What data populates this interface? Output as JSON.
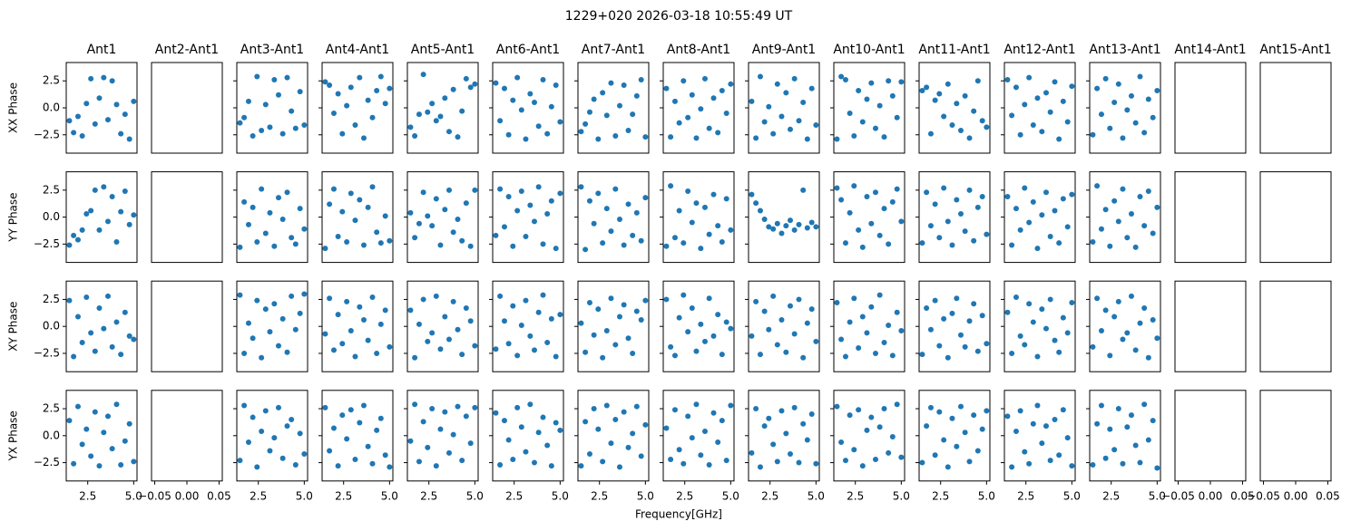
{
  "chart_data": {
    "type": "scatter",
    "title": "1229+020 2026-03-18 10:55:49 UT",
    "xlabel": "Frequency[GHz]",
    "color": "#1f77b4",
    "x": [
      1.5,
      1.73,
      1.97,
      2.2,
      2.43,
      2.67,
      2.9,
      3.13,
      3.37,
      3.6,
      3.83,
      4.07,
      4.3,
      4.53,
      4.77,
      5.0
    ],
    "xlim": [
      1.33,
      5.18
    ],
    "xticks": [
      2.5,
      {
        "value": 5,
        "label": "5.0"
      }
    ],
    "ylim": [
      -4.2,
      4.2
    ],
    "yticks": [
      {
        "value": -2.5,
        "label": "−2.5"
      },
      {
        "value": 0,
        "label": "0.0"
      },
      2.5
    ],
    "empty_xlim": [
      -0.055,
      0.055
    ],
    "empty_xticks": [
      {
        "value": -0.05,
        "label": "−0.05"
      },
      {
        "value": 0,
        "label": "0.00"
      },
      0.05
    ],
    "columns": [
      "Ant1",
      "Ant2-Ant1",
      "Ant3-Ant1",
      "Ant4-Ant1",
      "Ant5-Ant1",
      "Ant6-Ant1",
      "Ant7-Ant1",
      "Ant8-Ant1",
      "Ant9-Ant1",
      "Ant10-Ant1",
      "Ant11-Ant1",
      "Ant12-Ant1",
      "Ant13-Ant1",
      "Ant14-Ant1",
      "Ant15-Ant1"
    ],
    "rows": [
      {
        "ylabel": "XX Phase",
        "series": [
          [
            -1.2,
            -2.3,
            -0.8,
            -2.6,
            0.4,
            2.7,
            -1.5,
            0.9,
            2.8,
            -1.1,
            2.5,
            0.3,
            -2.4,
            -0.6,
            -2.9,
            0.6
          ],
          [],
          [
            -1.4,
            -0.9,
            0.6,
            -2.6,
            2.9,
            -2.1,
            0.3,
            -1.8,
            2.6,
            1.2,
            -2.4,
            2.8,
            -0.3,
            -1.9,
            1.5,
            -1.6
          ],
          [
            2.4,
            2.1,
            -0.5,
            1.3,
            -2.4,
            0.2,
            1.9,
            -1.6,
            2.8,
            -2.8,
            0.7,
            -0.9,
            1.6,
            2.9,
            0.4,
            1.8
          ],
          [
            -1.8,
            -2.6,
            -0.6,
            3.1,
            -0.4,
            0.4,
            -1.2,
            -0.8,
            0.9,
            -2.2,
            1.7,
            -2.7,
            -0.3,
            2.7,
            1.9,
            2.2
          ],
          [
            2.3,
            -1.2,
            1.8,
            -2.5,
            0.7,
            2.8,
            -0.2,
            -2.9,
            1.3,
            0.5,
            -1.7,
            2.6,
            -2.4,
            0.1,
            2.1,
            -1.3
          ],
          [
            -2.2,
            -1.5,
            -0.4,
            0.8,
            -2.9,
            1.4,
            -0.7,
            2.3,
            -2.6,
            0.2,
            2.1,
            -2.1,
            -0.6,
            1.1,
            2.6,
            -2.7
          ],
          [
            1.8,
            -2.7,
            0.6,
            -1.4,
            2.5,
            -0.9,
            1.2,
            -2.8,
            -0.1,
            2.7,
            -1.9,
            0.9,
            -2.3,
            1.6,
            -0.5,
            2.2
          ],
          [
            0.6,
            -2.8,
            2.9,
            -1.3,
            0.1,
            -2.4,
            2.2,
            -0.8,
            1.4,
            -2.0,
            2.7,
            -1.2,
            0.5,
            -2.9,
            1.8,
            -1.6
          ],
          [
            -2.9,
            2.9,
            2.6,
            -0.5,
            -2.6,
            1.6,
            -1.3,
            0.8,
            2.3,
            -1.9,
            0.2,
            -2.7,
            2.5,
            1.1,
            -0.9,
            2.4
          ],
          [
            1.6,
            1.9,
            -2.4,
            0.7,
            1.3,
            -0.8,
            2.2,
            -1.6,
            0.4,
            -2.1,
            1.1,
            -2.8,
            -0.3,
            2.5,
            -1.2,
            -1.8
          ],
          [
            2.6,
            -0.7,
            1.9,
            -2.5,
            0.3,
            2.8,
            -1.6,
            0.9,
            -2.2,
            1.4,
            -0.4,
            2.4,
            -2.9,
            0.6,
            -1.3,
            2.0
          ],
          [
            -2.5,
            1.8,
            -0.6,
            2.7,
            -1.9,
            0.5,
            2.2,
            -2.8,
            -0.2,
            1.1,
            -1.4,
            2.9,
            -2.3,
            0.8,
            -0.9,
            1.6
          ],
          [],
          []
        ]
      },
      {
        "ylabel": "YY Phase",
        "series": [
          [
            -2.6,
            -1.7,
            -2.1,
            -1.2,
            0.3,
            0.6,
            2.5,
            -1.2,
            2.8,
            -0.4,
            1.9,
            -2.3,
            0.5,
            2.4,
            -0.7,
            0.2
          ],
          [],
          [
            -2.8,
            1.4,
            -0.7,
            0.9,
            -2.3,
            2.6,
            -1.5,
            0.4,
            -2.7,
            1.8,
            -0.2,
            2.3,
            -1.9,
            -2.5,
            0.8,
            -1.1
          ],
          [
            -2.9,
            1.2,
            2.6,
            -1.8,
            0.5,
            -2.3,
            2.2,
            -0.3,
            1.6,
            -2.6,
            0.9,
            2.8,
            -1.4,
            -2.4,
            0.1,
            -2.2
          ],
          [
            0.4,
            -1.9,
            -0.6,
            2.3,
            0.1,
            -0.8,
            1.7,
            -2.6,
            0.7,
            2.5,
            -1.4,
            -0.2,
            -2.2,
            1.3,
            -2.7,
            2.5
          ],
          [
            -1.7,
            2.6,
            -0.9,
            1.9,
            -2.7,
            0.6,
            2.4,
            -1.8,
            1.1,
            -0.4,
            2.8,
            -2.5,
            0.3,
            1.5,
            -2.9,
            2.2
          ],
          [
            2.8,
            -3.0,
            1.5,
            -0.6,
            2.2,
            -2.4,
            0.8,
            -1.3,
            2.6,
            -0.2,
            -2.6,
            1.2,
            -1.7,
            0.4,
            -2.2,
            1.8
          ],
          [
            -2.7,
            2.9,
            -1.9,
            0.6,
            -2.4,
            2.4,
            -0.5,
            1.3,
            -2.9,
            0.9,
            -1.6,
            2.1,
            -0.8,
            -2.3,
            1.7,
            -1.2
          ],
          [
            2.1,
            1.3,
            0.6,
            -0.2,
            -0.9,
            -1.1,
            -0.6,
            -1.5,
            -0.8,
            -0.3,
            -1.2,
            -0.7,
            2.5,
            -1.0,
            -0.5,
            -0.9
          ],
          [
            2.7,
            1.6,
            -2.4,
            0.4,
            2.9,
            -1.2,
            -2.8,
            1.9,
            -0.6,
            2.3,
            -1.7,
            0.8,
            -2.5,
            1.4,
            2.6,
            -0.4
          ],
          [
            -2.4,
            2.3,
            -0.8,
            1.2,
            -1.9,
            2.7,
            -0.4,
            -2.6,
            1.6,
            0.3,
            -1.3,
            2.5,
            -2.2,
            0.9,
            1.9,
            -1.6
          ],
          [
            1.9,
            -2.6,
            0.8,
            -1.2,
            2.7,
            -0.5,
            1.4,
            -2.9,
            0.2,
            2.3,
            -1.8,
            0.6,
            -2.4,
            1.7,
            -0.9,
            2.1
          ],
          [
            -2.3,
            2.9,
            -1.1,
            0.7,
            -2.7,
            1.5,
            -0.4,
            2.6,
            -1.9,
            0.3,
            -2.8,
            1.9,
            -0.8,
            2.4,
            -1.5,
            0.9
          ],
          [],
          []
        ]
      },
      {
        "ylabel": "XY Phase",
        "series": [
          [
            2.4,
            -2.8,
            0.9,
            -1.5,
            2.7,
            -0.6,
            -2.3,
            1.7,
            -0.2,
            2.8,
            -1.9,
            0.4,
            -2.6,
            1.3,
            -0.9,
            -1.2
          ],
          [],
          [
            2.9,
            -2.5,
            0.3,
            -1.1,
            2.4,
            -2.9,
            1.6,
            -0.5,
            2.1,
            -1.8,
            0.7,
            -2.4,
            2.8,
            -0.3,
            1.2,
            3.0
          ],
          [
            -0.7,
            2.6,
            -2.2,
            1.1,
            -1.6,
            2.3,
            -0.4,
            -2.8,
            1.8,
            0.6,
            -1.3,
            2.7,
            -2.5,
            0.2,
            1.5,
            -1.9
          ],
          [
            1.5,
            -2.9,
            0.2,
            2.5,
            -1.4,
            -0.6,
            2.8,
            -2.1,
            0.9,
            -1.2,
            2.3,
            -0.3,
            -2.6,
            1.7,
            0.5,
            -1.8
          ],
          [
            -2.1,
            2.8,
            0.5,
            -1.6,
            1.9,
            -2.7,
            0.1,
            2.4,
            -0.9,
            -2.2,
            1.3,
            2.9,
            -1.5,
            0.7,
            -2.8,
            1.1
          ],
          [
            0.3,
            -2.4,
            2.2,
            -0.8,
            1.6,
            -2.9,
            -0.4,
            2.6,
            -1.7,
            0.9,
            2.0,
            -1.1,
            -2.5,
            1.4,
            0.6,
            2.4
          ],
          [
            2.5,
            -1.9,
            -2.7,
            0.8,
            2.9,
            -0.5,
            1.7,
            -2.3,
            0.2,
            -1.4,
            2.6,
            -0.9,
            1.1,
            -2.6,
            0.4,
            -0.2
          ],
          [
            -0.9,
            2.3,
            -2.6,
            1.4,
            -0.3,
            2.8,
            -1.7,
            0.6,
            -2.4,
            1.9,
            -0.7,
            2.5,
            -2.9,
            0.3,
            1.6,
            -1.4
          ],
          [
            2.2,
            -1.2,
            -2.8,
            0.4,
            2.6,
            -2.0,
            0.9,
            -0.6,
            1.8,
            -2.5,
            2.9,
            -1.5,
            0.1,
            -2.7,
            1.3,
            -0.4
          ],
          [
            -2.6,
            1.7,
            -0.3,
            2.4,
            -1.8,
            0.7,
            -2.9,
            1.2,
            2.6,
            -0.8,
            -1.9,
            0.5,
            2.1,
            -2.3,
            1.0,
            -1.6
          ],
          [
            1.3,
            -2.5,
            2.7,
            -0.9,
            -1.7,
            2.1,
            0.4,
            -2.8,
            1.6,
            -0.2,
            2.5,
            -1.3,
            -2.4,
            0.8,
            -0.6,
            2.2
          ],
          [
            -1.9,
            2.6,
            -0.4,
            1.5,
            -2.7,
            0.9,
            2.3,
            -1.2,
            -0.6,
            2.8,
            -2.2,
            0.3,
            1.7,
            -2.9,
            0.6,
            -1.1
          ],
          [],
          []
        ]
      },
      {
        "ylabel": "YX Phase",
        "series": [
          [
            1.4,
            -2.6,
            2.7,
            -0.8,
            0.6,
            -1.9,
            2.2,
            -2.8,
            0.3,
            1.8,
            -1.2,
            2.9,
            -2.7,
            -0.5,
            1.1,
            -2.4
          ],
          [],
          [
            -2.3,
            2.8,
            -0.6,
            1.7,
            -2.9,
            0.4,
            2.3,
            -1.4,
            -0.2,
            2.6,
            -2.1,
            0.9,
            1.5,
            -2.7,
            0.2,
            -1.7
          ],
          [
            2.6,
            -1.4,
            0.7,
            -2.8,
            1.9,
            -0.3,
            2.4,
            -2.2,
            1.2,
            2.8,
            -1.0,
            -2.6,
            0.5,
            1.6,
            -1.8,
            -2.9
          ],
          [
            -0.5,
            2.9,
            -2.4,
            1.3,
            -1.1,
            2.5,
            -2.8,
            0.6,
            2.2,
            -1.6,
            0.1,
            2.7,
            -2.3,
            1.8,
            -0.7,
            2.6
          ],
          [
            2.1,
            -2.7,
            1.4,
            -0.4,
            -2.2,
            2.6,
            0.8,
            -1.5,
            2.9,
            -2.5,
            0.3,
            1.7,
            -0.9,
            -2.8,
            1.2,
            0.5
          ],
          [
            -2.8,
            1.3,
            -1.7,
            2.5,
            0.6,
            -2.4,
            2.8,
            -0.7,
            1.5,
            -2.9,
            2.2,
            -1.1,
            0.2,
            2.7,
            -1.9,
            1.0
          ],
          [
            0.7,
            -2.2,
            2.4,
            -1.3,
            -2.6,
            1.8,
            -0.2,
            2.9,
            -1.8,
            0.4,
            -2.7,
            2.1,
            -0.6,
            1.4,
            -2.3,
            2.8
          ],
          [
            -1.6,
            2.5,
            -2.9,
            0.9,
            1.6,
            -0.8,
            -2.4,
            2.3,
            0.2,
            -1.7,
            2.6,
            -2.5,
            1.1,
            -0.4,
            2.0,
            -2.6
          ],
          [
            2.7,
            -0.6,
            -2.3,
            1.9,
            -1.3,
            2.4,
            -2.8,
            0.5,
            1.7,
            -2.2,
            0.8,
            2.5,
            -1.6,
            -0.1,
            2.9,
            -2.0
          ],
          [
            -2.5,
            0.9,
            2.6,
            -1.8,
            2.2,
            -0.4,
            -2.9,
            1.6,
            -1.0,
            2.7,
            0.3,
            -2.4,
            1.9,
            -1.4,
            0.6,
            2.3
          ],
          [
            1.8,
            -2.9,
            0.4,
            2.3,
            -1.5,
            -2.6,
            1.1,
            2.8,
            -0.7,
            0.9,
            -2.3,
            1.5,
            -1.8,
            2.4,
            -0.2,
            -2.8
          ],
          [
            -2.7,
            1.1,
            2.8,
            -2.1,
            0.6,
            -1.3,
            2.5,
            -2.6,
            0.8,
            1.9,
            -0.9,
            -2.5,
            2.9,
            -0.4,
            1.4,
            -3.0
          ],
          [],
          []
        ]
      }
    ]
  }
}
